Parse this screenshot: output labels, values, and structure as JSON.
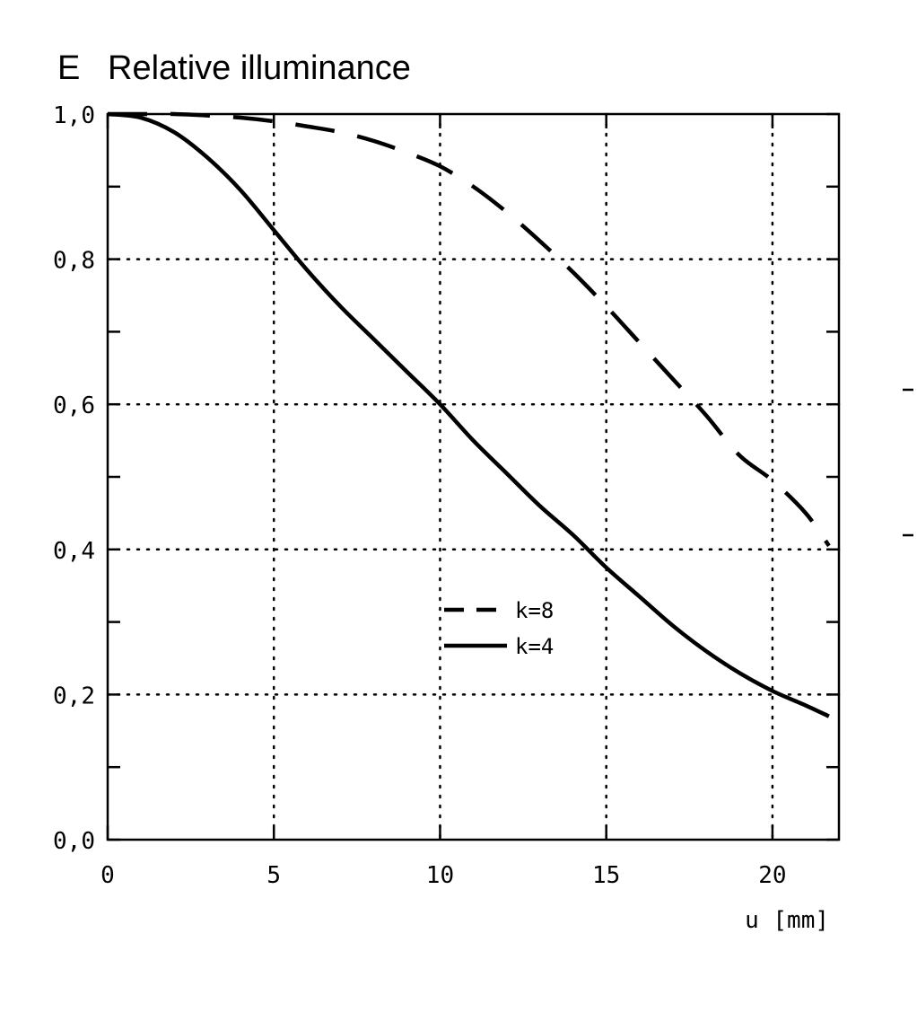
{
  "chart_data": {
    "type": "line",
    "title": "Relative illuminance",
    "ylabel": "E",
    "xlabel": "u [mm]",
    "xlim": [
      0,
      22
    ],
    "ylim": [
      0,
      1
    ],
    "x_ticks": [
      "0",
      "5",
      "10",
      "15",
      "20"
    ],
    "y_ticks": [
      "0,0",
      "0,2",
      "0,4",
      "0,6",
      "0,8",
      "1,0"
    ],
    "grid": true,
    "legend_position": "center",
    "series": [
      {
        "name": "k=8",
        "style": "dashed",
        "color": "#000000",
        "x": [
          0,
          1,
          2,
          3,
          4,
          5,
          6,
          7,
          8,
          9,
          10,
          11,
          12,
          13,
          14,
          15,
          16,
          17,
          18,
          19,
          20,
          21,
          21.7
        ],
        "y": [
          1.0,
          1.0,
          1.0,
          0.998,
          0.995,
          0.99,
          0.983,
          0.975,
          0.963,
          0.947,
          0.928,
          0.9,
          0.865,
          0.825,
          0.782,
          0.735,
          0.685,
          0.635,
          0.585,
          0.53,
          0.495,
          0.45,
          0.405
        ]
      },
      {
        "name": "k=4",
        "style": "solid",
        "color": "#000000",
        "x": [
          0,
          1,
          2,
          3,
          4,
          5,
          6,
          7,
          8,
          9,
          10,
          11,
          12,
          13,
          14,
          15,
          16,
          17,
          18,
          19,
          20,
          21,
          21.7
        ],
        "y": [
          1.0,
          0.995,
          0.975,
          0.94,
          0.895,
          0.84,
          0.785,
          0.735,
          0.69,
          0.645,
          0.6,
          0.55,
          0.505,
          0.46,
          0.42,
          0.375,
          0.335,
          0.295,
          0.26,
          0.23,
          0.205,
          0.185,
          0.17
        ]
      }
    ]
  }
}
